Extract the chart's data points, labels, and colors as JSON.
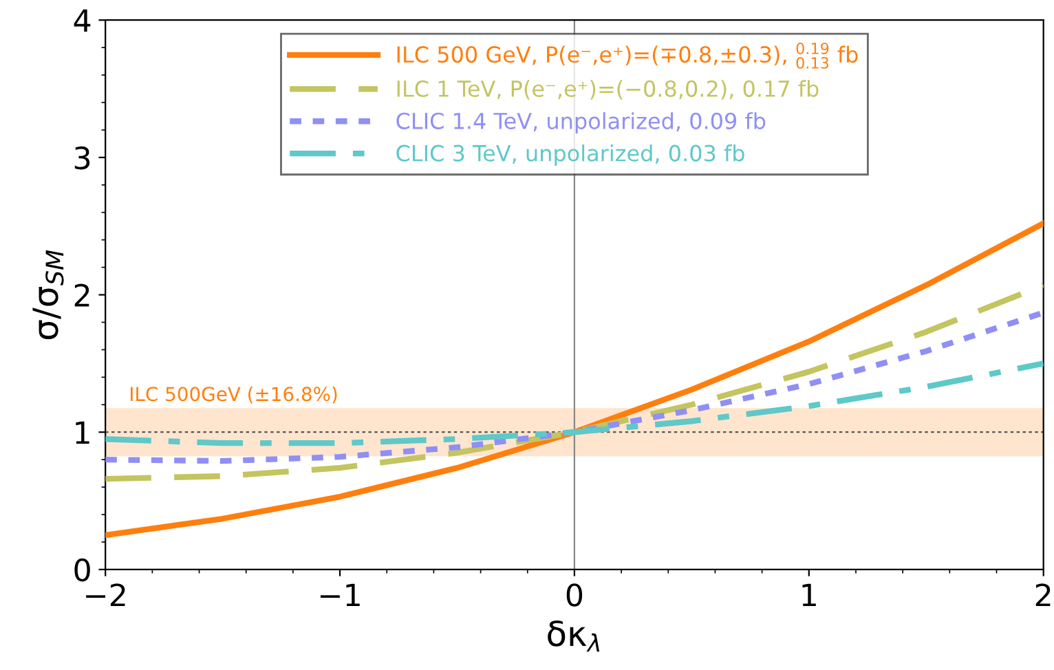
{
  "chart_data": {
    "type": "line",
    "xlabel": "δκ$_{λ}$",
    "ylabel": "σ/σ$_{SM}$",
    "x": [
      -2,
      -1.5,
      -1,
      -0.5,
      0,
      0.5,
      1,
      1.5,
      2
    ],
    "xlim": [
      -2,
      2
    ],
    "xticks": [
      {
        "value": -2,
        "label": "−2"
      },
      {
        "value": -1,
        "label": "−1"
      },
      0,
      1,
      2
    ],
    "ylim": [
      0,
      4
    ],
    "yticks": [
      0,
      1,
      2,
      3,
      4
    ],
    "grid": false,
    "legend": "top",
    "series": [
      {
        "name": "ILC 500 GeV, P(e⁻,e⁺)=(∓0.8,±0.3), $^{0.19}$ $_{0.13}$ fb",
        "color": "#ff7f0e",
        "line_style": "solid",
        "values": [
          0.25,
          0.37,
          0.53,
          0.74,
          1,
          1.31,
          1.66,
          2.07,
          2.52
        ]
      },
      {
        "name": "ILC 1 TeV, P(e⁻,e⁺)=(−0.8,0.2), 0.17 fb",
        "color": "#c4c460",
        "line_style": "dashed",
        "values": [
          0.66,
          0.68,
          0.74,
          0.85,
          1,
          1.2,
          1.44,
          1.73,
          2.07
        ]
      },
      {
        "name": "CLIC 1.4 TeV, unpolarized, 0.09 fb",
        "color": "#8f8ff5",
        "line_style": "dotted",
        "values": [
          0.8,
          0.79,
          0.82,
          0.89,
          1,
          1.16,
          1.35,
          1.59,
          1.87
        ]
      },
      {
        "name": "CLIC 3 TeV, unpolarized, 0.03 fb",
        "color": "#5fc8c8",
        "line_style": "dashdot",
        "values": [
          0.95,
          0.92,
          0.92,
          0.95,
          1,
          1.08,
          1.19,
          1.33,
          1.5
        ]
      }
    ],
    "bands": [
      {
        "axis": "y",
        "from": 0.832,
        "to": 1.168,
        "label": "ILC 500GeV (±16.8%)",
        "color": "#ff7f0e"
      }
    ],
    "ref_lines": [
      {
        "axis": "y",
        "value": 1,
        "color": "#555555",
        "line_style": "dotted"
      },
      {
        "axis": "x",
        "value": 0,
        "color": "#888888",
        "line_style": "solid"
      }
    ]
  }
}
